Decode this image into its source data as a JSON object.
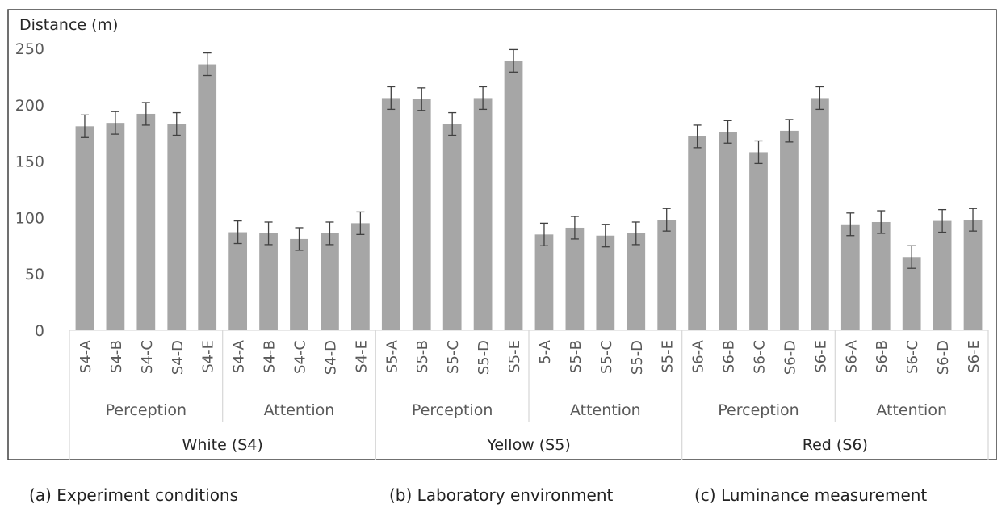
{
  "chart_data": {
    "type": "bar",
    "ylabel": "Distance (m)",
    "ylim": [
      0,
      250
    ],
    "yticks": [
      0,
      50,
      100,
      150,
      200,
      250
    ],
    "grid": false,
    "legend": "none",
    "bar_color": "#a6a6a6",
    "errorbar_color": "#404040",
    "categories": [
      "S4-A",
      "S4-B",
      "S4-C",
      "S4-D",
      "S4-E",
      "S4-A",
      "S4-B",
      "S4-C",
      "S4-D",
      "S4-E",
      "S5-A",
      "S5-B",
      "S5-C",
      "S5-D",
      "S5-E",
      "5-A",
      "S5-B",
      "S5-C",
      "S5-D",
      "S5-E",
      "S6-A",
      "S6-B",
      "S6-C",
      "S6-D",
      "S6-E",
      "S6-A",
      "S6-B",
      "S6-C",
      "S6-D",
      "S6-E"
    ],
    "values": [
      181,
      184,
      192,
      183,
      236,
      87,
      86,
      81,
      86,
      95,
      206,
      205,
      183,
      206,
      239,
      85,
      91,
      84,
      86,
      98,
      172,
      176,
      158,
      177,
      206,
      94,
      96,
      65,
      97,
      98
    ],
    "errors": [
      10,
      10,
      10,
      10,
      10,
      10,
      10,
      10,
      10,
      10,
      10,
      10,
      10,
      10,
      10,
      10,
      10,
      10,
      10,
      10,
      10,
      10,
      10,
      10,
      10,
      10,
      10,
      10,
      10,
      10
    ],
    "subgroups": [
      "Perception",
      "Attention",
      "Perception",
      "Attention",
      "Perception",
      "Attention"
    ],
    "groups": [
      "White (S4)",
      "Yellow (S5)",
      "Red (S6)"
    ]
  },
  "captions": [
    "(a) Experiment conditions",
    "(b) Laboratory environment",
    "(c) Luminance measurement"
  ]
}
